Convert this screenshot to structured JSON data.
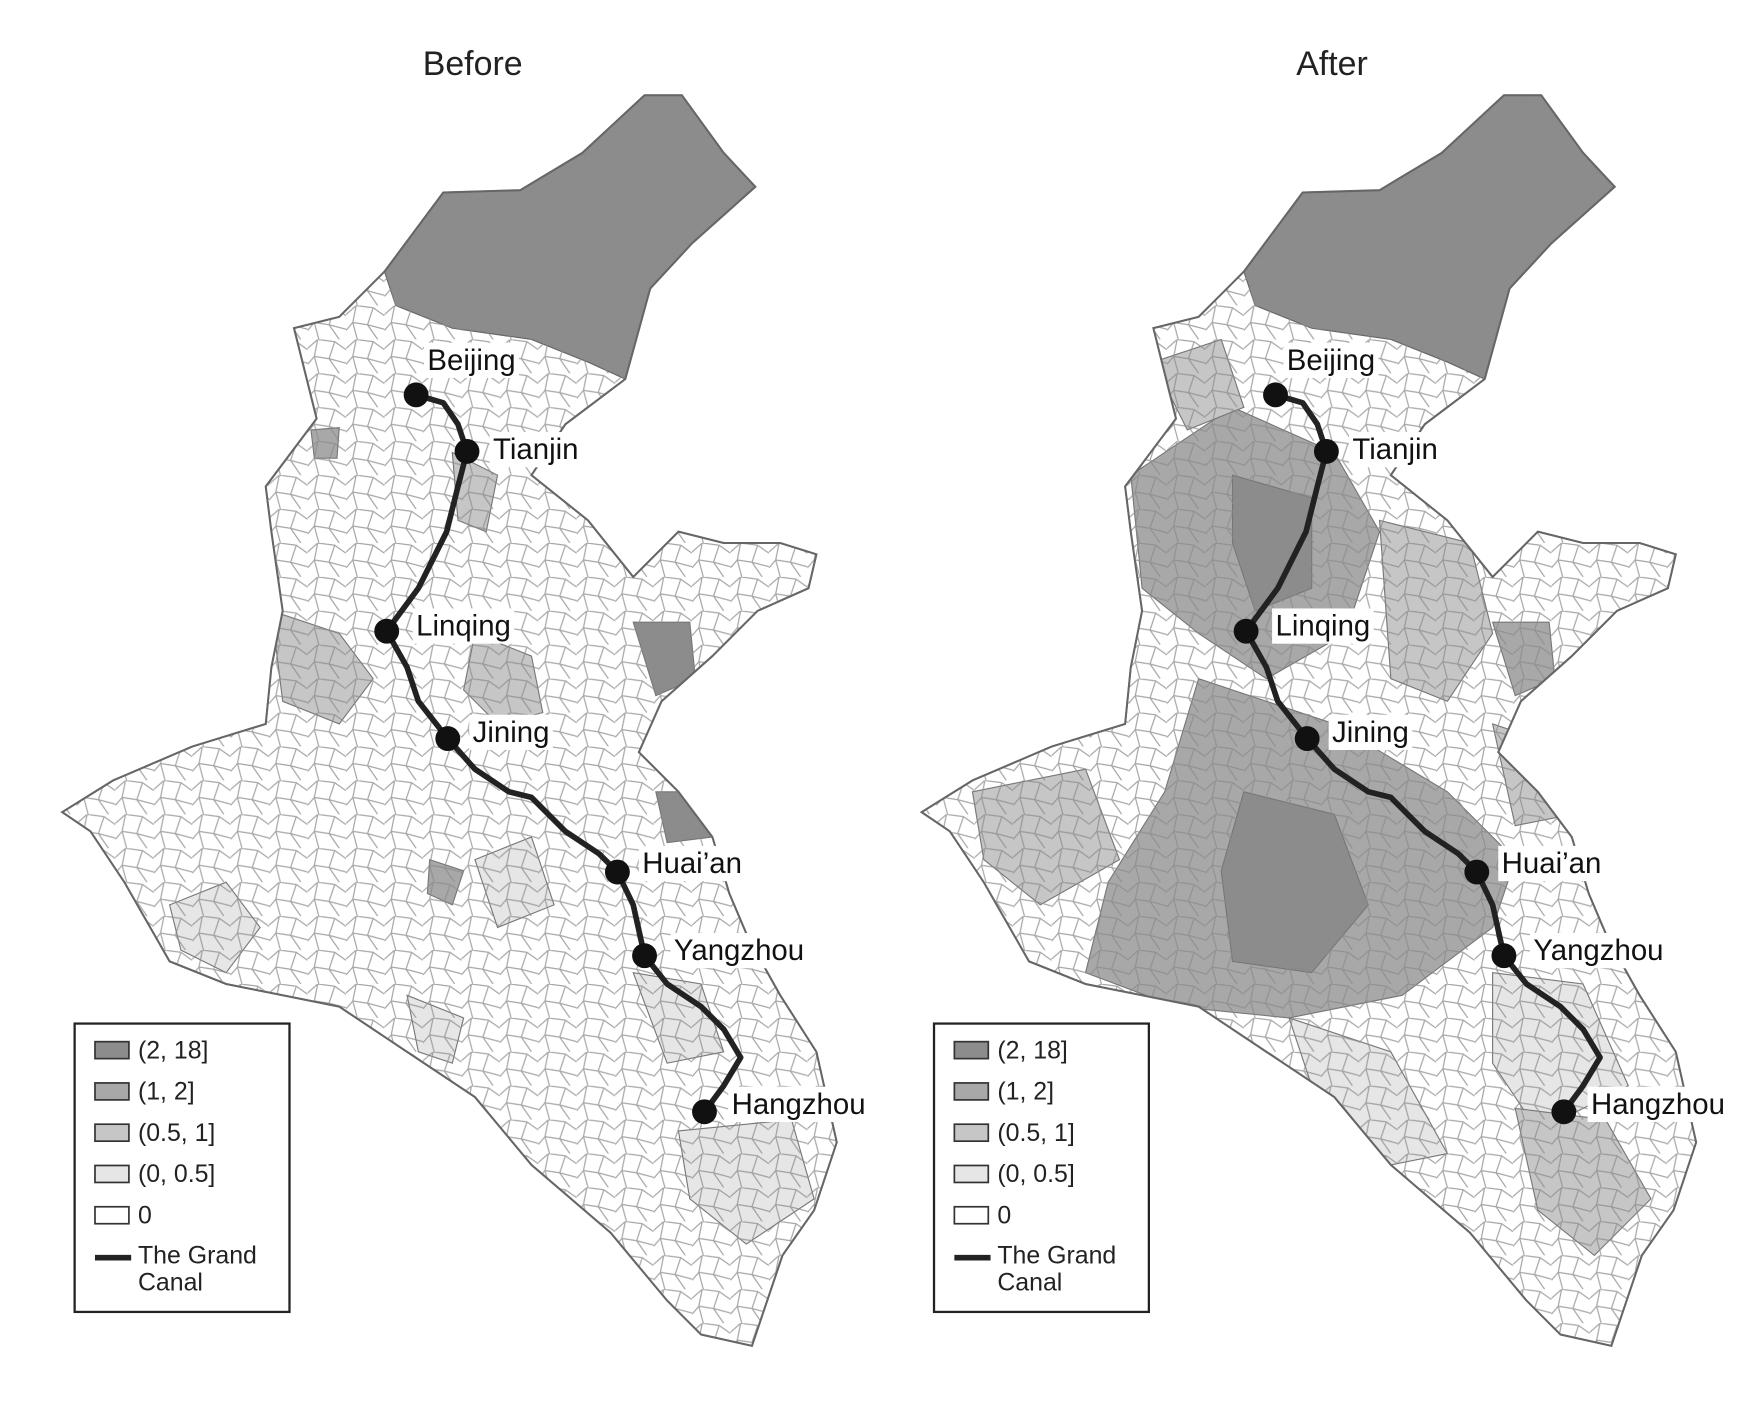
{
  "panels": [
    {
      "title": "Before",
      "cities": [
        "Beijing",
        "Tianjin",
        "Linqing",
        "Jining",
        "Huai’an",
        "Yangzhou",
        "Hangzhou"
      ],
      "legend": [
        "(2, 18]",
        "(1, 2]",
        "(0.5, 1]",
        "(0, 0.5]",
        "0",
        "The Grand Canal"
      ]
    },
    {
      "title": "After",
      "cities": [
        "Beijing",
        "Tianjin",
        "Linqing",
        "Jining",
        "Huai’an",
        "Yangzhou",
        "Hangzhou"
      ],
      "legend": [
        "(2, 18]",
        "(1, 2]",
        "(0.5, 1]",
        "(0, 0.5]",
        "0",
        "The Grand Canal"
      ]
    }
  ]
}
